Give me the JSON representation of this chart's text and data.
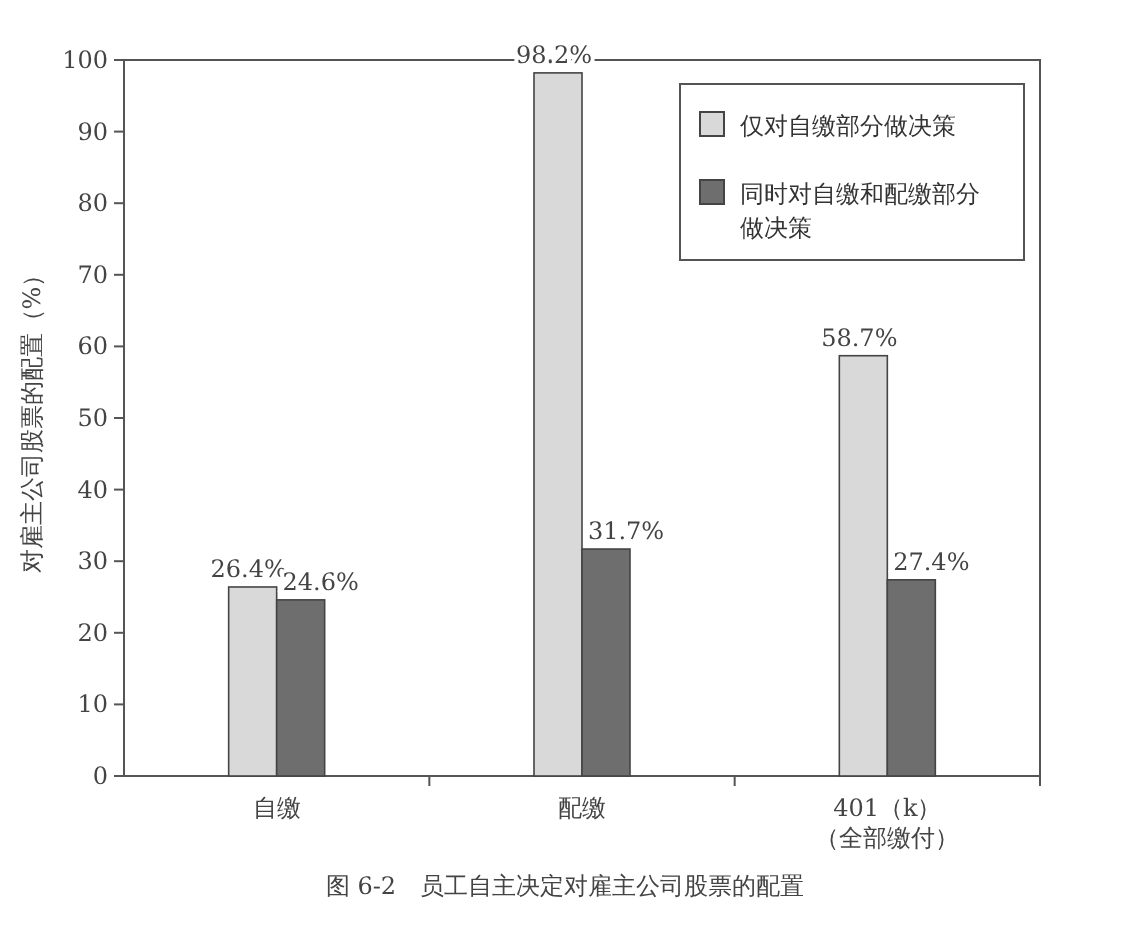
{
  "chart_data": {
    "type": "bar",
    "title": "图 6-2　员工自主决定对雇主公司股票的配置",
    "ylabel": "对雇主公司股票的配置（%）",
    "categories": [
      "自缴",
      "配缴",
      "401（k）（全部缴付）"
    ],
    "series": [
      {
        "name": "仅对自缴部分做决策",
        "color": "#d9d9d9",
        "values": [
          26.4,
          98.2,
          58.7
        ],
        "value_labels": [
          "26.4%",
          "98.2%",
          "58.7%"
        ]
      },
      {
        "name": "同时对自缴和配缴部分做决策",
        "color": "#6e6e6e",
        "values": [
          24.6,
          31.7,
          27.4
        ],
        "value_labels": [
          "24.6%",
          "31.7%",
          "27.4%"
        ]
      }
    ],
    "ylim": [
      0,
      100
    ],
    "yticks": [
      0,
      10,
      20,
      30,
      40,
      50,
      60,
      70,
      80,
      90,
      100
    ],
    "legend": "top right",
    "grid": false
  }
}
